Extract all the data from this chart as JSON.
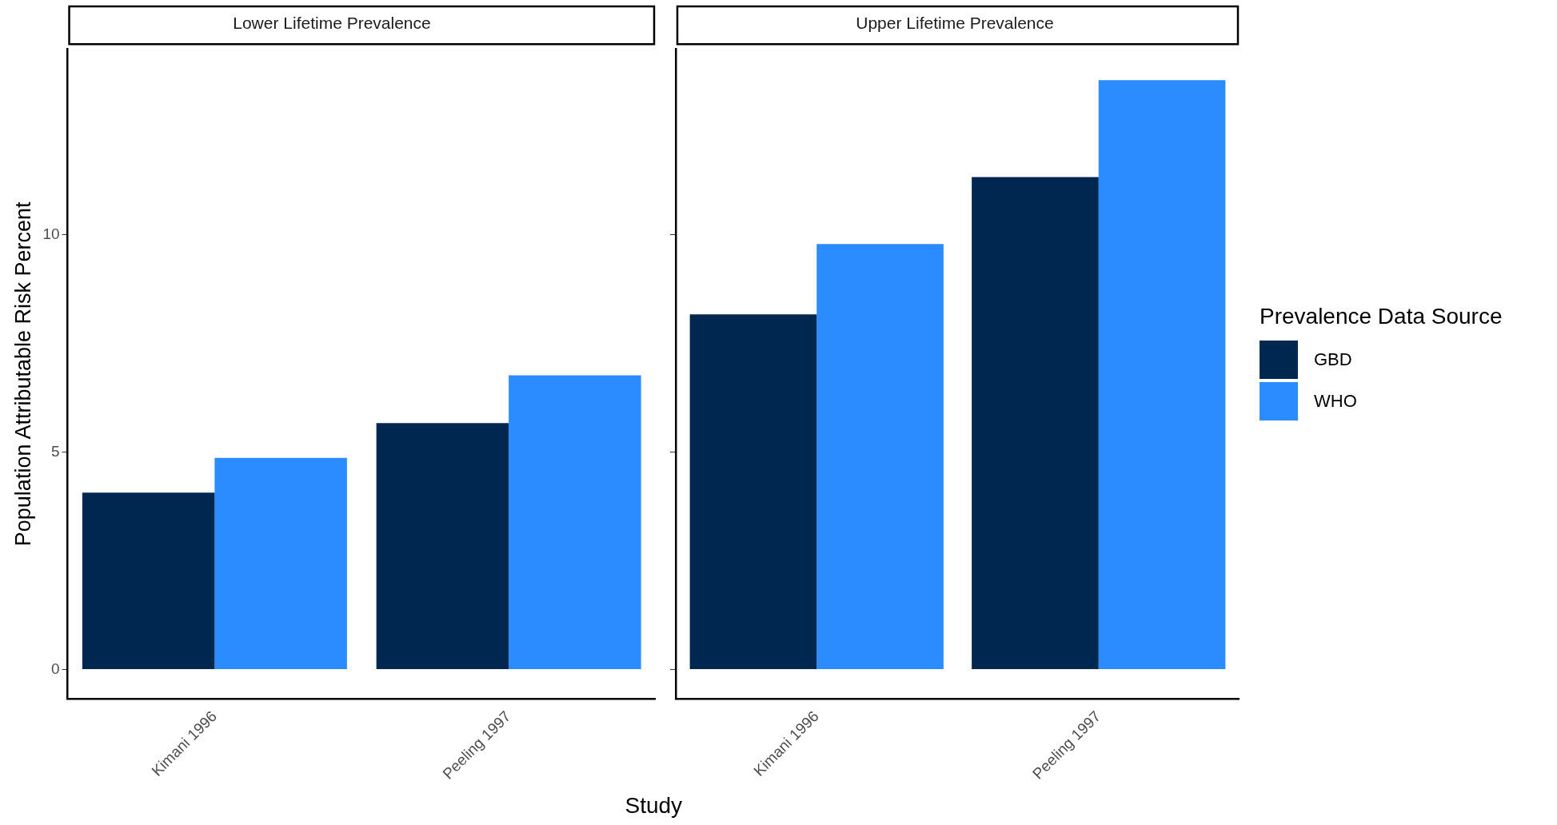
{
  "chart_data": [
    {
      "type": "bar",
      "title": "Lower Lifetime Prevalence",
      "legend_title": "Prevalence Data Source",
      "legend": "right",
      "xlabel": "Study",
      "ylabel": "Population Attributable Risk Percent",
      "categories": [
        "Kimani 1996",
        "Peeling 1997"
      ],
      "series": [
        {
          "name": "GBD",
          "color": "#002750",
          "values": [
            4.07,
            5.67
          ]
        },
        {
          "name": "WHO",
          "color": "#2b8cff",
          "values": [
            4.87,
            6.77
          ]
        }
      ],
      "ylim": [
        -0.68,
        14.28
      ],
      "yticks": [
        0,
        5,
        10
      ]
    },
    {
      "type": "bar",
      "title": "Upper Lifetime Prevalence",
      "tick_labels": "x",
      "categories": [
        "Kimani 1996",
        "Peeling 1997"
      ],
      "series": [
        {
          "color": "#002750",
          "values": [
            8.17,
            11.33
          ]
        },
        {
          "color": "#2b8cff",
          "values": [
            9.79,
            13.56
          ]
        }
      ],
      "ylim": [
        -0.68,
        14.28
      ],
      "yticks": [
        0,
        5,
        10
      ]
    }
  ]
}
